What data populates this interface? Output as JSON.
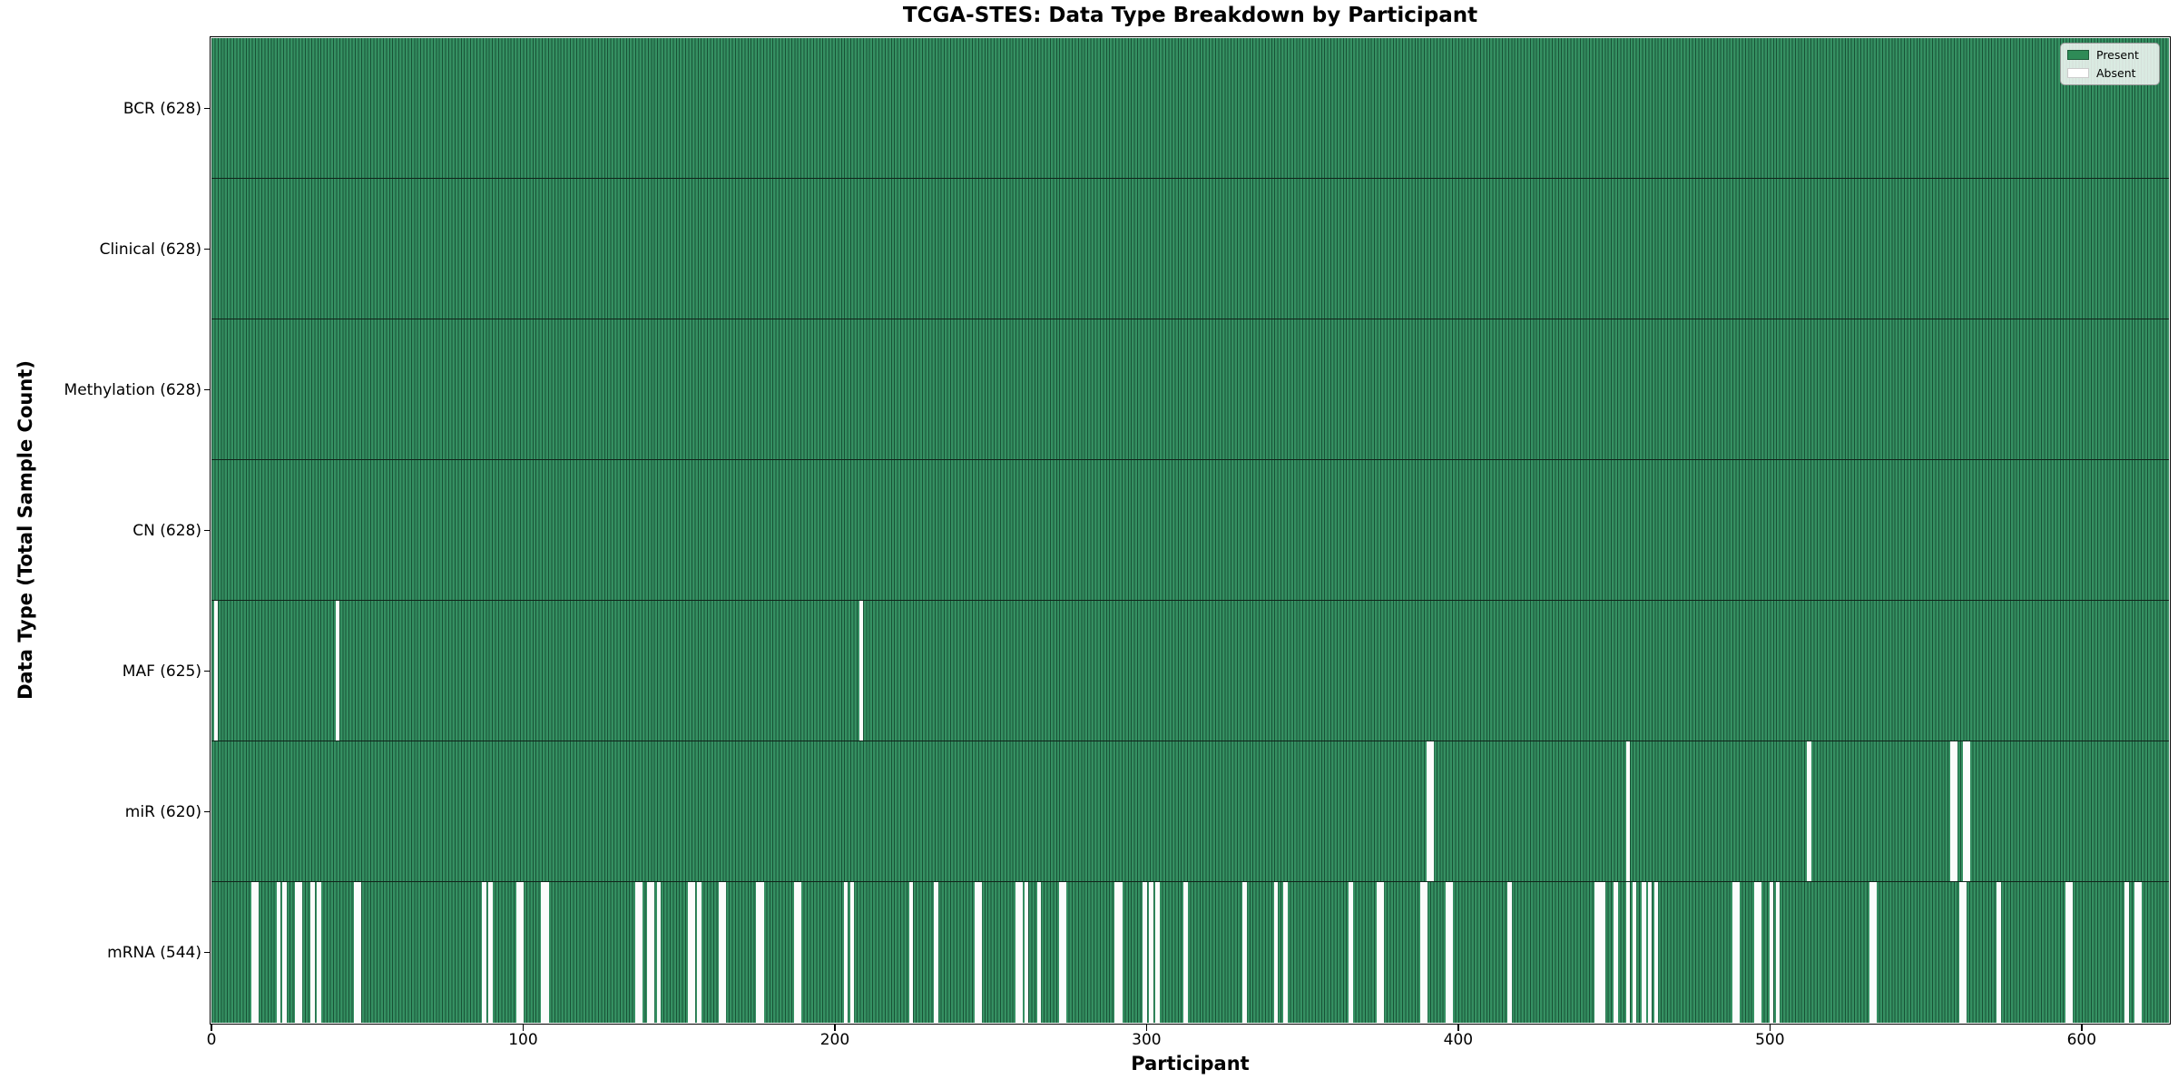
{
  "chart_data": {
    "type": "heatmap",
    "title": "TCGA-STES: Data Type Breakdown by Participant",
    "xlabel": "Participant",
    "ylabel": "Data Type (Total Sample Count)",
    "n_participants": 628,
    "x_ticks": [
      0,
      100,
      200,
      300,
      400,
      500,
      600
    ],
    "grid": false,
    "legend_position": "upper-right",
    "colors": {
      "present": "#2e8b57",
      "absent": "#ffffff",
      "cell_edge": "#10241a"
    },
    "legend": [
      {
        "label": "Present",
        "color": "#2e8b57"
      },
      {
        "label": "Absent",
        "color": "#ffffff"
      }
    ],
    "rows": [
      {
        "name": "BCR",
        "label": "BCR (628)",
        "present_count": 628,
        "absent_participants": []
      },
      {
        "name": "Clinical",
        "label": "Clinical (628)",
        "present_count": 628,
        "absent_participants": []
      },
      {
        "name": "Methylation",
        "label": "Methylation (628)",
        "present_count": 628,
        "absent_participants": []
      },
      {
        "name": "CN",
        "label": "CN (628)",
        "present_count": 628,
        "absent_participants": []
      },
      {
        "name": "MAF",
        "label": "MAF (625)",
        "present_count": 625,
        "absent_participants": [
          1,
          40,
          208
        ]
      },
      {
        "name": "miR",
        "label": "miR (620)",
        "present_count": 620,
        "absent_participants": [
          390,
          391,
          454,
          512,
          558,
          559,
          562,
          563
        ]
      },
      {
        "name": "mRNA",
        "label": "mRNA (544)",
        "present_count": 544,
        "absent_participants": [
          13,
          14,
          21,
          23,
          27,
          28,
          32,
          34,
          46,
          47,
          87,
          89,
          98,
          99,
          106,
          107,
          136,
          137,
          140,
          141,
          143,
          153,
          154,
          156,
          163,
          164,
          175,
          176,
          187,
          188,
          203,
          205,
          224,
          232,
          245,
          246,
          258,
          259,
          261,
          265,
          272,
          273,
          290,
          291,
          299,
          301,
          303,
          312,
          331,
          341,
          344,
          365,
          374,
          375,
          388,
          389,
          396,
          397,
          416,
          444,
          445,
          446,
          450,
          454,
          456,
          459,
          461,
          463,
          488,
          489,
          495,
          496,
          500,
          502,
          532,
          533,
          561,
          562,
          573,
          595,
          596,
          614,
          617,
          618
        ]
      }
    ]
  }
}
